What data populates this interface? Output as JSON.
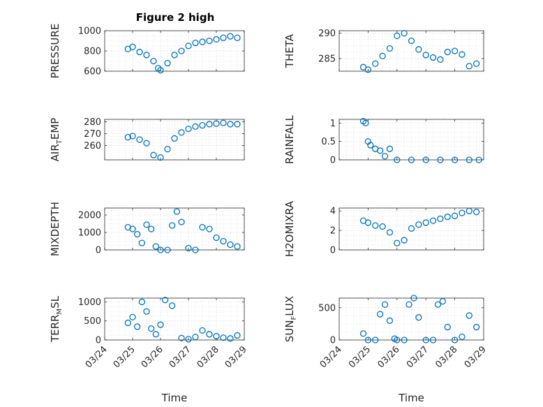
{
  "figure": {
    "title": "Figure 2 high"
  },
  "chart_data": [
    {
      "type": "scatter",
      "title": "Figure 2 high",
      "xlabel": "",
      "ylabel": "PRESSURE",
      "ylim": [
        600,
        1000
      ],
      "yticks": [
        600,
        800,
        1000
      ],
      "xlim": [
        "03/24",
        "03/29"
      ],
      "grid": true,
      "x": [
        "03/24 20:00",
        "03/25 00:00",
        "03/25 06:00",
        "03/25 12:00",
        "03/25 18:00",
        "03/25 22:00",
        "03/26 00:00",
        "03/26 06:00",
        "03/26 12:00",
        "03/26 18:00",
        "03/27 00:00",
        "03/27 06:00",
        "03/27 12:00",
        "03/27 18:00",
        "03/28 00:00",
        "03/28 06:00",
        "03/28 12:00",
        "03/28 18:00"
      ],
      "y": [
        820,
        840,
        790,
        760,
        700,
        630,
        610,
        680,
        760,
        800,
        850,
        880,
        890,
        900,
        915,
        930,
        945,
        930
      ]
    },
    {
      "type": "scatter",
      "xlabel": "",
      "ylabel": "THETA",
      "ylim": [
        282.5,
        290.5
      ],
      "yticks": [
        285,
        290
      ],
      "xlim": [
        "03/24",
        "03/29"
      ],
      "grid": true,
      "x": [
        "03/24 20:00",
        "03/25 00:00",
        "03/25 06:00",
        "03/25 12:00",
        "03/25 18:00",
        "03/26 00:00",
        "03/26 06:00",
        "03/26 12:00",
        "03/26 18:00",
        "03/27 00:00",
        "03/27 06:00",
        "03/27 12:00",
        "03/27 18:00",
        "03/28 00:00",
        "03/28 06:00",
        "03/28 12:00",
        "03/28 18:00"
      ],
      "y": [
        283.3,
        282.8,
        284.0,
        285.5,
        287.0,
        289.5,
        290.0,
        288.5,
        286.8,
        285.7,
        285.2,
        284.8,
        286.3,
        286.5,
        285.8,
        283.5,
        284.0
      ]
    },
    {
      "type": "scatter",
      "xlabel": "",
      "ylabel": "AIR_TEMP",
      "ylim": [
        248,
        282
      ],
      "yticks": [
        260,
        270,
        280
      ],
      "xlim": [
        "03/24",
        "03/29"
      ],
      "grid": true,
      "x": [
        "03/24 20:00",
        "03/25 00:00",
        "03/25 06:00",
        "03/25 12:00",
        "03/25 18:00",
        "03/26 00:00",
        "03/26 06:00",
        "03/26 12:00",
        "03/26 18:00",
        "03/27 00:00",
        "03/27 06:00",
        "03/27 12:00",
        "03/27 18:00",
        "03/28 00:00",
        "03/28 06:00",
        "03/28 12:00",
        "03/28 18:00"
      ],
      "y": [
        267,
        268,
        265,
        262,
        252,
        250,
        257,
        266,
        271,
        274,
        276,
        277,
        278,
        278.5,
        279,
        278,
        278
      ]
    },
    {
      "type": "scatter",
      "xlabel": "",
      "ylabel": "RAINFALL",
      "ylim": [
        0,
        1.1
      ],
      "yticks": [
        0,
        0.5,
        1
      ],
      "xlim": [
        "03/24",
        "03/29"
      ],
      "grid": true,
      "x": [
        "03/24 20:00",
        "03/24 22:00",
        "03/25 00:00",
        "03/25 02:00",
        "03/25 06:00",
        "03/25 10:00",
        "03/25 14:00",
        "03/25 18:00",
        "03/26 00:00",
        "03/26 12:00",
        "03/27 00:00",
        "03/27 12:00",
        "03/28 00:00",
        "03/28 12:00",
        "03/28 20:00"
      ],
      "y": [
        1.05,
        1.0,
        0.5,
        0.4,
        0.3,
        0.25,
        0.1,
        0.3,
        0,
        0,
        0,
        0,
        0,
        0,
        0
      ]
    },
    {
      "type": "scatter",
      "xlabel": "",
      "ylabel": "MIXDEPTH",
      "ylim": [
        0,
        2400
      ],
      "yticks": [
        0,
        1000,
        2000
      ],
      "xlim": [
        "03/24",
        "03/29"
      ],
      "grid": true,
      "x": [
        "03/24 20:00",
        "03/25 00:00",
        "03/25 04:00",
        "03/25 08:00",
        "03/25 12:00",
        "03/25 16:00",
        "03/25 20:00",
        "03/26 00:00",
        "03/26 06:00",
        "03/26 10:00",
        "03/26 14:00",
        "03/26 18:00",
        "03/27 00:00",
        "03/27 06:00",
        "03/27 12:00",
        "03/27 18:00",
        "03/28 00:00",
        "03/28 06:00",
        "03/28 12:00",
        "03/28 18:00"
      ],
      "y": [
        1300,
        1200,
        900,
        400,
        1450,
        1200,
        200,
        0,
        0,
        1400,
        2200,
        1600,
        100,
        0,
        1300,
        1200,
        700,
        500,
        300,
        200
      ]
    },
    {
      "type": "scatter",
      "xlabel": "",
      "ylabel": "H2OMIXRA",
      "ylim": [
        0,
        4.3
      ],
      "yticks": [
        0,
        2,
        4
      ],
      "xlim": [
        "03/24",
        "03/29"
      ],
      "grid": true,
      "x": [
        "03/24 20:00",
        "03/25 00:00",
        "03/25 06:00",
        "03/25 12:00",
        "03/25 18:00",
        "03/26 00:00",
        "03/26 06:00",
        "03/26 12:00",
        "03/26 18:00",
        "03/27 00:00",
        "03/27 06:00",
        "03/27 12:00",
        "03/27 18:00",
        "03/28 00:00",
        "03/28 06:00",
        "03/28 12:00",
        "03/28 18:00"
      ],
      "y": [
        3.0,
        2.8,
        2.5,
        2.4,
        1.8,
        0.7,
        1.0,
        2.2,
        2.6,
        2.8,
        3.0,
        3.2,
        3.4,
        3.5,
        3.8,
        4.0,
        3.9
      ]
    },
    {
      "type": "scatter",
      "xlabel": "Time",
      "ylabel": "TERR_MSL",
      "ylim": [
        0,
        1100
      ],
      "yticks": [
        0,
        500,
        1000
      ],
      "xlim": [
        "03/24",
        "03/29"
      ],
      "xticks": [
        "03/24",
        "03/25",
        "03/26",
        "03/27",
        "03/28",
        "03/29"
      ],
      "grid": true,
      "x": [
        "03/24 20:00",
        "03/25 00:00",
        "03/25 04:00",
        "03/25 08:00",
        "03/25 12:00",
        "03/25 16:00",
        "03/25 20:00",
        "03/26 00:00",
        "03/26 04:00",
        "03/26 10:00",
        "03/26 18:00",
        "03/27 00:00",
        "03/27 06:00",
        "03/27 12:00",
        "03/27 18:00",
        "03/28 00:00",
        "03/28 06:00",
        "03/28 12:00",
        "03/28 18:00"
      ],
      "y": [
        450,
        600,
        350,
        1000,
        750,
        300,
        150,
        400,
        1050,
        900,
        50,
        20,
        80,
        250,
        150,
        100,
        60,
        40,
        120
      ]
    },
    {
      "type": "scatter",
      "xlabel": "Time",
      "ylabel": "SUN_FLUX",
      "ylim": [
        0,
        650
      ],
      "yticks": [
        0,
        500
      ],
      "xlim": [
        "03/24",
        "03/29"
      ],
      "xticks": [
        "03/24",
        "03/25",
        "03/26",
        "03/27",
        "03/28",
        "03/29"
      ],
      "grid": true,
      "x": [
        "03/24 20:00",
        "03/25 00:00",
        "03/25 06:00",
        "03/25 10:00",
        "03/25 14:00",
        "03/25 18:00",
        "03/25 22:00",
        "03/26 00:00",
        "03/26 06:00",
        "03/26 10:00",
        "03/26 14:00",
        "03/26 18:00",
        "03/27 00:00",
        "03/27 06:00",
        "03/27 10:00",
        "03/27 14:00",
        "03/27 18:00",
        "03/28 00:00",
        "03/28 06:00",
        "03/28 12:00",
        "03/28 18:00"
      ],
      "y": [
        100,
        0,
        0,
        400,
        550,
        300,
        20,
        0,
        0,
        550,
        650,
        350,
        0,
        0,
        550,
        600,
        200,
        0,
        50,
        380,
        200
      ]
    }
  ]
}
